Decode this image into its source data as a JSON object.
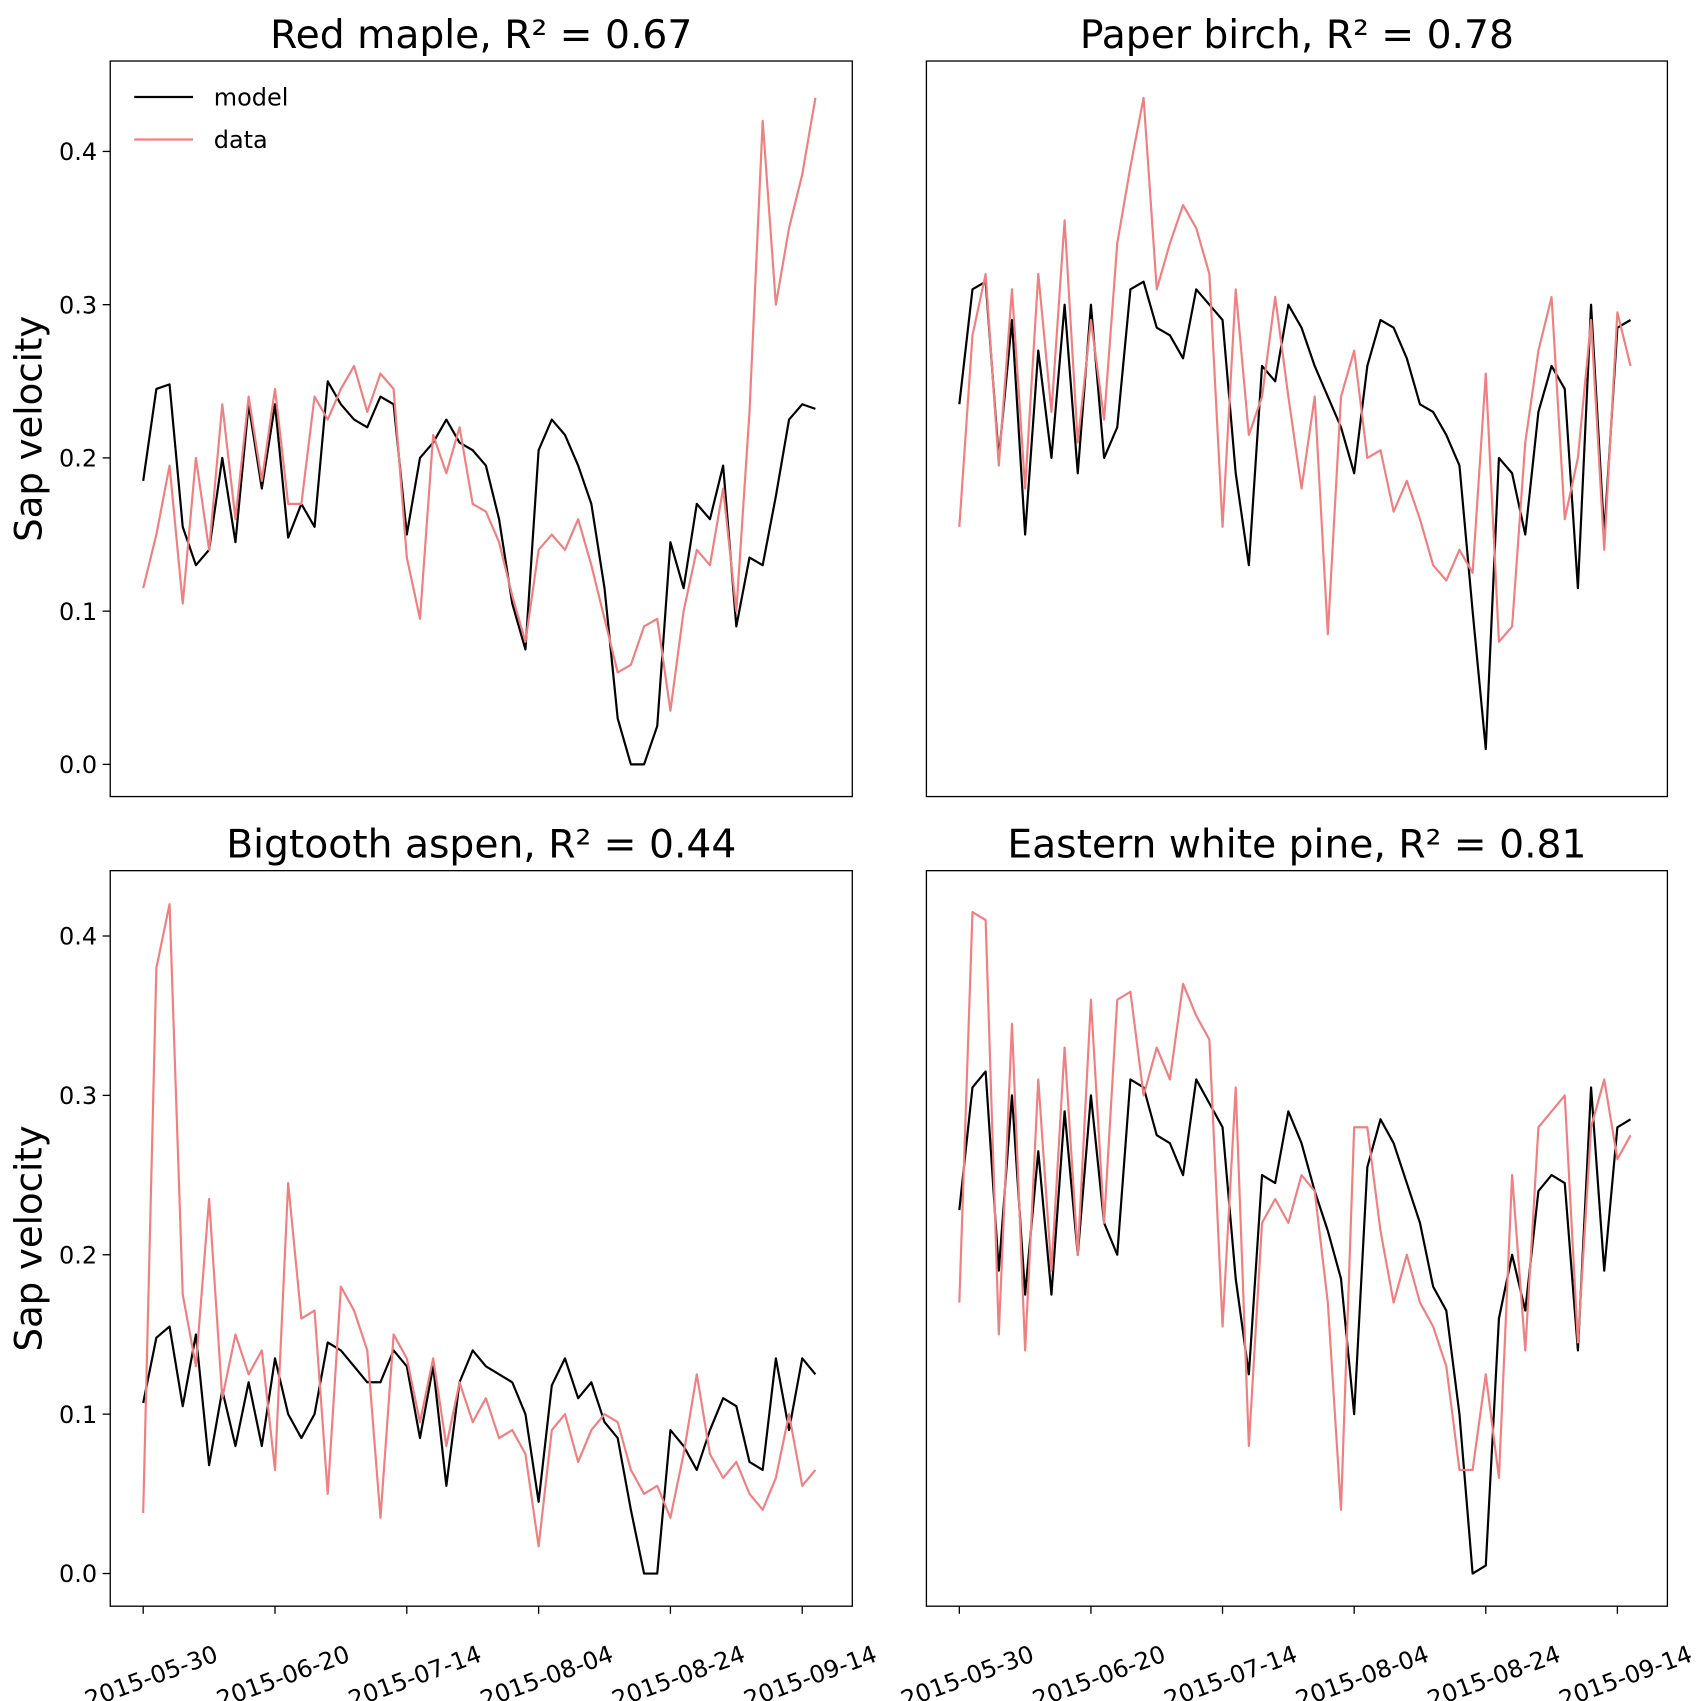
{
  "chart_data": [
    {
      "type": "line",
      "title": "Red maple, R² = 0.67",
      "ylabel": "Sap velocity",
      "legend": "upper left",
      "x": [
        0,
        2,
        4,
        6,
        8,
        10,
        12,
        14,
        16,
        18,
        20,
        22,
        24,
        26,
        28,
        30,
        32,
        34,
        36,
        38,
        40,
        42,
        44,
        46,
        48,
        50,
        52,
        54,
        56,
        58,
        60,
        62,
        64,
        66,
        68,
        70,
        72,
        74,
        76,
        78,
        80,
        82,
        84,
        86,
        88,
        90,
        92,
        94,
        96,
        98,
        100,
        102
      ],
      "xlim": [
        -5,
        107.6
      ],
      "ylim": [
        -0.021,
        0.459
      ],
      "yticks": [
        {
          "value": 0,
          "label": "0.0"
        },
        0.1,
        0.2,
        0.3,
        0.4
      ],
      "series": [
        {
          "name": "model",
          "color": "#000000",
          "values": [
            0.185,
            0.245,
            0.248,
            0.155,
            0.13,
            0.14,
            0.2,
            0.145,
            0.235,
            0.18,
            0.235,
            0.148,
            0.17,
            0.155,
            0.25,
            0.235,
            0.225,
            0.22,
            0.24,
            0.235,
            0.15,
            0.2,
            0.21,
            0.225,
            0.21,
            0.205,
            0.195,
            0.16,
            0.105,
            0.075,
            0.205,
            0.225,
            0.215,
            0.195,
            0.17,
            0.115,
            0.03,
            0,
            0,
            0.025,
            0.145,
            0.115,
            0.17,
            0.16,
            0.195,
            0.09,
            0.135,
            0.13,
            0.175,
            0.225,
            0.235,
            0.232
          ]
        },
        {
          "name": "data",
          "color": "#f08080",
          "values": [
            0.115,
            0.15,
            0.195,
            0.105,
            0.2,
            0.14,
            0.235,
            0.16,
            0.24,
            0.185,
            0.245,
            0.17,
            0.17,
            0.24,
            0.225,
            0.245,
            0.26,
            0.23,
            0.255,
            0.245,
            0.135,
            0.095,
            0.215,
            0.19,
            0.22,
            0.17,
            0.165,
            0.145,
            0.11,
            0.08,
            0.14,
            0.15,
            0.14,
            0.16,
            0.13,
            0.095,
            0.06,
            0.065,
            0.09,
            0.095,
            0.035,
            0.1,
            0.14,
            0.13,
            0.18,
            0.1,
            0.23,
            0.42,
            0.3,
            0.35,
            0.385,
            0.435
          ]
        }
      ]
    },
    {
      "type": "line",
      "title": "Paper birch, R² = 0.78",
      "x": [
        0,
        2,
        4,
        6,
        8,
        10,
        12,
        14,
        16,
        18,
        20,
        22,
        24,
        26,
        28,
        30,
        32,
        34,
        36,
        38,
        40,
        42,
        44,
        46,
        48,
        50,
        52,
        54,
        56,
        58,
        60,
        62,
        64,
        66,
        68,
        70,
        72,
        74,
        76,
        78,
        80,
        82,
        84,
        86,
        88,
        90,
        92,
        94,
        96,
        98,
        100,
        102
      ],
      "xlim": [
        -5,
        107.6
      ],
      "ylim": [
        -0.021,
        0.459
      ],
      "series": [
        {
          "color": "#000000",
          "values": [
            0.235,
            0.31,
            0.315,
            0.2,
            0.29,
            0.15,
            0.27,
            0.2,
            0.3,
            0.19,
            0.3,
            0.2,
            0.22,
            0.31,
            0.315,
            0.285,
            0.28,
            0.265,
            0.31,
            0.3,
            0.29,
            0.19,
            0.13,
            0.26,
            0.25,
            0.3,
            0.285,
            0.26,
            0.24,
            0.22,
            0.19,
            0.26,
            0.29,
            0.285,
            0.265,
            0.235,
            0.23,
            0.215,
            0.195,
            0.1,
            0.01,
            0.2,
            0.19,
            0.15,
            0.23,
            0.26,
            0.245,
            0.115,
            0.3,
            0.15,
            0.285,
            0.29
          ]
        },
        {
          "color": "#f08080",
          "values": [
            0.155,
            0.28,
            0.32,
            0.195,
            0.31,
            0.18,
            0.32,
            0.23,
            0.355,
            0.21,
            0.29,
            0.225,
            0.34,
            0.39,
            0.435,
            0.31,
            0.34,
            0.365,
            0.35,
            0.32,
            0.155,
            0.31,
            0.215,
            0.24,
            0.305,
            0.24,
            0.18,
            0.24,
            0.085,
            0.24,
            0.27,
            0.2,
            0.205,
            0.165,
            0.185,
            0.16,
            0.13,
            0.12,
            0.14,
            0.125,
            0.255,
            0.08,
            0.09,
            0.21,
            0.27,
            0.305,
            0.16,
            0.2,
            0.29,
            0.14,
            0.295,
            0.26
          ]
        }
      ]
    },
    {
      "type": "line",
      "title": "Bigtooth aspen, R² = 0.44",
      "ylabel": "Sap velocity",
      "x": [
        0,
        2,
        4,
        6,
        8,
        10,
        12,
        14,
        16,
        18,
        20,
        22,
        24,
        26,
        28,
        30,
        32,
        34,
        36,
        38,
        40,
        42,
        44,
        46,
        48,
        50,
        52,
        54,
        56,
        58,
        60,
        62,
        64,
        66,
        68,
        70,
        72,
        74,
        76,
        78,
        80,
        82,
        84,
        86,
        88,
        90,
        92,
        94,
        96,
        98,
        100,
        102
      ],
      "xlim": [
        -5,
        107.6
      ],
      "ylim": [
        -0.0205,
        0.441
      ],
      "xticks": [
        {
          "value": 0,
          "label": "2015-05-30"
        },
        {
          "value": 20,
          "label": "2015-06-20"
        },
        {
          "value": 40,
          "label": "2015-07-14"
        },
        {
          "value": 60,
          "label": "2015-08-04"
        },
        {
          "value": 80,
          "label": "2015-08-24"
        },
        {
          "value": 100,
          "label": "2015-09-14"
        }
      ],
      "yticks": [
        {
          "value": 0,
          "label": "0.0"
        },
        0.1,
        0.2,
        0.3,
        0.4
      ],
      "series": [
        {
          "color": "#000000",
          "values": [
            0.107,
            0.148,
            0.155,
            0.105,
            0.15,
            0.068,
            0.115,
            0.08,
            0.12,
            0.08,
            0.135,
            0.1,
            0.085,
            0.1,
            0.145,
            0.14,
            0.13,
            0.12,
            0.12,
            0.14,
            0.13,
            0.085,
            0.13,
            0.055,
            0.12,
            0.14,
            0.13,
            0.125,
            0.12,
            0.1,
            0.045,
            0.118,
            0.135,
            0.11,
            0.12,
            0.095,
            0.085,
            0.04,
            0,
            0,
            0.09,
            0.08,
            0.065,
            0.09,
            0.11,
            0.105,
            0.07,
            0.065,
            0.135,
            0.09,
            0.135,
            0.125
          ]
        },
        {
          "color": "#f08080",
          "values": [
            0.038,
            0.38,
            0.42,
            0.175,
            0.13,
            0.235,
            0.11,
            0.15,
            0.125,
            0.14,
            0.065,
            0.245,
            0.16,
            0.165,
            0.05,
            0.18,
            0.165,
            0.14,
            0.035,
            0.15,
            0.135,
            0.095,
            0.135,
            0.08,
            0.12,
            0.095,
            0.11,
            0.085,
            0.09,
            0.075,
            0.017,
            0.09,
            0.1,
            0.07,
            0.09,
            0.1,
            0.095,
            0.065,
            0.05,
            0.055,
            0.035,
            0.075,
            0.125,
            0.075,
            0.06,
            0.07,
            0.05,
            0.04,
            0.06,
            0.1,
            0.055,
            0.065
          ]
        }
      ]
    },
    {
      "type": "line",
      "title": "Eastern white pine, R² = 0.81",
      "x": [
        0,
        2,
        4,
        6,
        8,
        10,
        12,
        14,
        16,
        18,
        20,
        22,
        24,
        26,
        28,
        30,
        32,
        34,
        36,
        38,
        40,
        42,
        44,
        46,
        48,
        50,
        52,
        54,
        56,
        58,
        60,
        62,
        64,
        66,
        68,
        70,
        72,
        74,
        76,
        78,
        80,
        82,
        84,
        86,
        88,
        90,
        92,
        94,
        96,
        98,
        100,
        102
      ],
      "xlim": [
        -5,
        107.6
      ],
      "ylim": [
        -0.0205,
        0.441
      ],
      "xticks": [
        {
          "value": 0,
          "label": "2015-05-30"
        },
        {
          "value": 20,
          "label": "2015-06-20"
        },
        {
          "value": 40,
          "label": "2015-07-14"
        },
        {
          "value": 60,
          "label": "2015-08-04"
        },
        {
          "value": 80,
          "label": "2015-08-24"
        },
        {
          "value": 100,
          "label": "2015-09-14"
        }
      ],
      "series": [
        {
          "color": "#000000",
          "values": [
            0.228,
            0.305,
            0.315,
            0.19,
            0.3,
            0.175,
            0.265,
            0.175,
            0.29,
            0.2,
            0.3,
            0.22,
            0.2,
            0.31,
            0.305,
            0.275,
            0.27,
            0.25,
            0.31,
            0.295,
            0.28,
            0.185,
            0.125,
            0.25,
            0.245,
            0.29,
            0.27,
            0.24,
            0.215,
            0.185,
            0.1,
            0.255,
            0.285,
            0.27,
            0.245,
            0.22,
            0.18,
            0.165,
            0.1,
            0,
            0.005,
            0.16,
            0.2,
            0.165,
            0.24,
            0.25,
            0.245,
            0.14,
            0.305,
            0.19,
            0.28,
            0.285
          ]
        },
        {
          "color": "#f08080",
          "values": [
            0.17,
            0.415,
            0.41,
            0.15,
            0.345,
            0.14,
            0.31,
            0.19,
            0.33,
            0.2,
            0.36,
            0.22,
            0.36,
            0.365,
            0.3,
            0.33,
            0.31,
            0.37,
            0.35,
            0.335,
            0.155,
            0.305,
            0.08,
            0.22,
            0.235,
            0.22,
            0.25,
            0.24,
            0.17,
            0.04,
            0.28,
            0.28,
            0.215,
            0.17,
            0.2,
            0.17,
            0.155,
            0.13,
            0.065,
            0.065,
            0.125,
            0.06,
            0.25,
            0.14,
            0.28,
            0.29,
            0.3,
            0.145,
            0.28,
            0.31,
            0.26,
            0.275
          ]
        }
      ]
    }
  ]
}
